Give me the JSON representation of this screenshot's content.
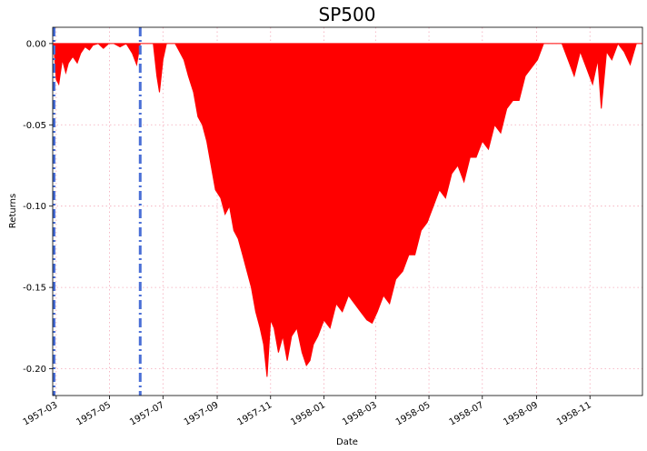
{
  "chart_data": {
    "type": "area",
    "title": "SP500",
    "xlabel": "Date",
    "ylabel": "Returns",
    "xlim": [
      "1957-02-25",
      "1958-12-31"
    ],
    "ylim": [
      -0.2165,
      0.01
    ],
    "grid": true,
    "x_ticks": [
      "1957-03",
      "1957-05",
      "1957-07",
      "1957-09",
      "1957-11",
      "1958-01",
      "1958-03",
      "1958-05",
      "1958-07",
      "1958-09",
      "1958-11"
    ],
    "y_ticks": [
      "0.00",
      "-0.05",
      "-0.10",
      "-0.15",
      "-0.20"
    ],
    "y_tick_values": [
      0.0,
      -0.05,
      -0.1,
      -0.15,
      -0.2
    ],
    "fill_color": "#ff0000",
    "vlines": [
      {
        "date": "1957-02-26",
        "color": "#4a6fd6",
        "style": "dashdot"
      },
      {
        "date": "1957-06-05",
        "color": "#4a6fd6",
        "style": "dashdot"
      }
    ],
    "series": [
      {
        "x": [
          "1957-02-26",
          "1957-03-01",
          "1957-03-04",
          "1957-03-08",
          "1957-03-12",
          "1957-03-15",
          "1957-03-20",
          "1957-03-25",
          "1957-03-29",
          "1957-04-03",
          "1957-04-08",
          "1957-04-12",
          "1957-04-18",
          "1957-04-24",
          "1957-04-30",
          "1957-05-06",
          "1957-05-13",
          "1957-05-20",
          "1957-05-27",
          "1957-06-01",
          "1957-06-05",
          "1957-06-10",
          "1957-06-13",
          "1957-06-17",
          "1957-06-20",
          "1957-06-24",
          "1957-06-27",
          "1957-07-01",
          "1957-07-05",
          "1957-07-10",
          "1957-07-15",
          "1957-07-20",
          "1957-07-25",
          "1957-07-30",
          "1957-08-05",
          "1957-08-10",
          "1957-08-15",
          "1957-08-20",
          "1957-08-25",
          "1957-08-30",
          "1957-09-05",
          "1957-09-10",
          "1957-09-15",
          "1957-09-20",
          "1957-09-25",
          "1957-09-30",
          "1957-10-05",
          "1957-10-10",
          "1957-10-15",
          "1957-10-20",
          "1957-10-24",
          "1957-10-28",
          "1957-11-01",
          "1957-11-05",
          "1957-11-10",
          "1957-11-15",
          "1957-11-20",
          "1957-11-25",
          "1957-12-01",
          "1957-12-07",
          "1957-12-12",
          "1957-12-16",
          "1957-12-20",
          "1957-12-25",
          "1958-01-01",
          "1958-01-08",
          "1958-01-15",
          "1958-01-22",
          "1958-01-29",
          "1958-02-05",
          "1958-02-12",
          "1958-02-19",
          "1958-02-25",
          "1958-03-03",
          "1958-03-10",
          "1958-03-17",
          "1958-03-24",
          "1958-04-01",
          "1958-04-08",
          "1958-04-15",
          "1958-04-22",
          "1958-04-29",
          "1958-05-06",
          "1958-05-13",
          "1958-05-20",
          "1958-05-27",
          "1958-06-03",
          "1958-06-10",
          "1958-06-17",
          "1958-06-24",
          "1958-07-01",
          "1958-07-08",
          "1958-07-15",
          "1958-07-22",
          "1958-07-29",
          "1958-08-05",
          "1958-08-12",
          "1958-08-19",
          "1958-08-26",
          "1958-09-02",
          "1958-09-09",
          "1958-09-16",
          "1958-09-23",
          "1958-09-30",
          "1958-10-07",
          "1958-10-14",
          "1958-10-21",
          "1958-10-28",
          "1958-11-04",
          "1958-11-10",
          "1958-11-14",
          "1958-11-20",
          "1958-11-26",
          "1958-12-03",
          "1958-12-10",
          "1958-12-17",
          "1958-12-24",
          "1958-12-31"
        ],
        "y": [
          0.0,
          -0.022,
          -0.025,
          -0.01,
          -0.018,
          -0.012,
          -0.008,
          -0.012,
          -0.006,
          -0.002,
          -0.004,
          -0.001,
          0.0,
          -0.003,
          0.0,
          0.0,
          -0.002,
          0.0,
          -0.006,
          -0.013,
          0.0,
          0.0,
          0.0,
          0.0,
          0.0,
          -0.02,
          -0.03,
          -0.01,
          0.0,
          0.0,
          0.0,
          -0.005,
          -0.01,
          -0.02,
          -0.03,
          -0.045,
          -0.05,
          -0.06,
          -0.075,
          -0.09,
          -0.095,
          -0.105,
          -0.1,
          -0.115,
          -0.12,
          -0.13,
          -0.14,
          -0.15,
          -0.165,
          -0.175,
          -0.185,
          -0.205,
          -0.17,
          -0.175,
          -0.19,
          -0.18,
          -0.195,
          -0.18,
          -0.175,
          -0.19,
          -0.198,
          -0.195,
          -0.185,
          -0.18,
          -0.17,
          -0.175,
          -0.16,
          -0.165,
          -0.155,
          -0.16,
          -0.165,
          -0.17,
          -0.172,
          -0.165,
          -0.155,
          -0.16,
          -0.145,
          -0.14,
          -0.13,
          -0.13,
          -0.115,
          -0.11,
          -0.1,
          -0.09,
          -0.095,
          -0.08,
          -0.075,
          -0.085,
          -0.07,
          -0.07,
          -0.06,
          -0.065,
          -0.05,
          -0.055,
          -0.04,
          -0.035,
          -0.035,
          -0.02,
          -0.015,
          -0.01,
          0.0,
          0.0,
          0.0,
          0.0,
          -0.01,
          -0.02,
          -0.005,
          -0.015,
          -0.025,
          -0.01,
          -0.04,
          -0.005,
          -0.01,
          0.0,
          -0.005,
          -0.013,
          0.0,
          0.0
        ]
      }
    ]
  }
}
